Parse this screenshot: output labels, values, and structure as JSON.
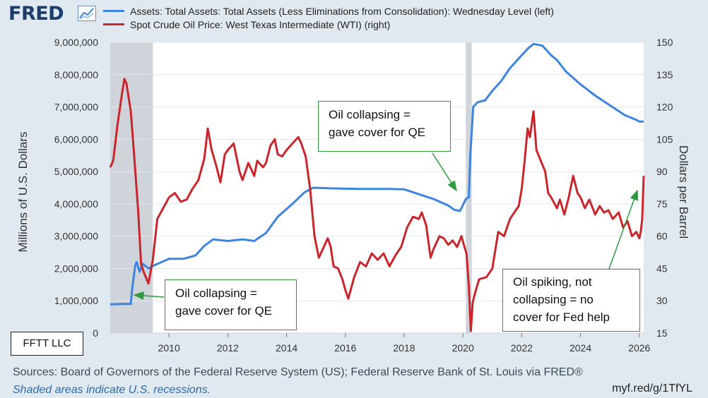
{
  "header": {
    "logo_text": "FRED",
    "logo_icon": "trend-chart-icon",
    "legend": [
      {
        "label": "Assets: Total Assets: Total Assets (Less Eliminations from Consolidation): Wednesday Level (left)",
        "color": "#3c84e0"
      },
      {
        "label": "Spot Crude Oil Price: West Texas Intermediate (WTI) (right)",
        "color": "#c8262b"
      }
    ]
  },
  "chart_data": {
    "type": "line",
    "left_axis": {
      "label": "Millions of U.S. Dollars",
      "range": [
        0,
        9000000
      ],
      "ticks": [
        "0",
        "1,000,000",
        "2,000,000",
        "3,000,000",
        "4,000,000",
        "5,000,000",
        "6,000,000",
        "7,000,000",
        "8,000,000",
        "9,000,000"
      ]
    },
    "right_axis": {
      "label": "Dollars per Barrel",
      "range": [
        15,
        150
      ],
      "ticks": [
        "15",
        "30",
        "45",
        "60",
        "75",
        "90",
        "105",
        "120",
        "135",
        "150"
      ]
    },
    "x_axis": {
      "range": [
        2008.0,
        2026.15
      ],
      "ticks": [
        "2010",
        "2012",
        "2014",
        "2016",
        "2018",
        "2020",
        "2022",
        "2024",
        "2026"
      ]
    },
    "recessions": [
      [
        2008.0,
        2009.45
      ],
      [
        2020.1,
        2020.3
      ]
    ],
    "series": [
      {
        "name": "Assets: Total Assets: Total Assets (Less Eliminations from Consolidation): Wednesday Level",
        "axis": "left",
        "color": "#3c84e0",
        "x": [
          2008.0,
          2008.4,
          2008.7,
          2008.75,
          2008.85,
          2008.9,
          2009.0,
          2009.1,
          2009.3,
          2009.5,
          2010.0,
          2010.5,
          2010.9,
          2011.2,
          2011.5,
          2012.0,
          2012.5,
          2012.9,
          2013.3,
          2013.7,
          2014.2,
          2014.6,
          2014.9,
          2015.5,
          2016.5,
          2017.5,
          2018.0,
          2018.5,
          2019.0,
          2019.5,
          2019.7,
          2019.9,
          2020.1,
          2020.2,
          2020.25,
          2020.35,
          2020.5,
          2020.75,
          2021.0,
          2021.3,
          2021.6,
          2021.9,
          2022.2,
          2022.4,
          2022.7,
          2023.0,
          2023.2,
          2023.5,
          2024.0,
          2024.5,
          2025.0,
          2025.5,
          2025.9,
          2026.0,
          2026.15
        ],
        "values": [
          890000,
          900000,
          900000,
          1400000,
          2100000,
          2200000,
          1900000,
          2150000,
          2000000,
          2100000,
          2300000,
          2300000,
          2400000,
          2700000,
          2900000,
          2850000,
          2900000,
          2850000,
          3100000,
          3600000,
          4000000,
          4350000,
          4500000,
          4480000,
          4460000,
          4460000,
          4450000,
          4300000,
          4150000,
          3950000,
          3820000,
          3780000,
          4150000,
          4200000,
          5500000,
          7000000,
          7150000,
          7200000,
          7500000,
          7800000,
          8200000,
          8500000,
          8800000,
          8950000,
          8900000,
          8600000,
          8450000,
          8100000,
          7700000,
          7350000,
          7050000,
          6750000,
          6600000,
          6550000,
          6550000
        ]
      },
      {
        "name": "Spot Crude Oil Price: West Texas Intermediate (WTI)",
        "axis": "right",
        "color": "#c8262b",
        "x": [
          2008.0,
          2008.1,
          2008.25,
          2008.4,
          2008.48,
          2008.55,
          2008.7,
          2008.8,
          2008.95,
          2009.05,
          2009.15,
          2009.3,
          2009.45,
          2009.6,
          2009.8,
          2010.0,
          2010.2,
          2010.4,
          2010.6,
          2010.8,
          2011.0,
          2011.2,
          2011.32,
          2011.45,
          2011.6,
          2011.75,
          2011.9,
          2012.0,
          2012.2,
          2012.4,
          2012.5,
          2012.7,
          2012.9,
          2013.0,
          2013.2,
          2013.3,
          2013.45,
          2013.6,
          2013.7,
          2013.85,
          2014.0,
          2014.2,
          2014.4,
          2014.5,
          2014.65,
          2014.8,
          2014.95,
          2015.1,
          2015.2,
          2015.4,
          2015.5,
          2015.6,
          2015.75,
          2015.9,
          2016.0,
          2016.1,
          2016.3,
          2016.5,
          2016.7,
          2016.9,
          2017.1,
          2017.3,
          2017.5,
          2017.7,
          2017.9,
          2018.1,
          2018.3,
          2018.5,
          2018.6,
          2018.75,
          2018.9,
          2019.0,
          2019.2,
          2019.35,
          2019.5,
          2019.65,
          2019.8,
          2019.95,
          2020.05,
          2020.12,
          2020.2,
          2020.27,
          2020.33,
          2020.4,
          2020.55,
          2020.8,
          2021.0,
          2021.2,
          2021.4,
          2021.6,
          2021.8,
          2021.9,
          2022.0,
          2022.1,
          2022.2,
          2022.28,
          2022.4,
          2022.5,
          2022.65,
          2022.8,
          2022.9,
          2023.0,
          2023.2,
          2023.3,
          2023.45,
          2023.6,
          2023.75,
          2023.9,
          2024.0,
          2024.15,
          2024.3,
          2024.5,
          2024.65,
          2024.8,
          2024.95,
          2025.1,
          2025.3,
          2025.45,
          2025.6,
          2025.75,
          2025.9,
          2026.0,
          2026.05,
          2026.1,
          2026.15
        ],
        "values": [
          92,
          95,
          112,
          126,
          133,
          131,
          118,
          100,
          72,
          47,
          43,
          38,
          49,
          68,
          73,
          78,
          80,
          76,
          77,
          82,
          86,
          96,
          110,
          100,
          93,
          85,
          98,
          100,
          103,
          90,
          86,
          94,
          88,
          95,
          92,
          94,
          102,
          105,
          98,
          97,
          100,
          103,
          106,
          103,
          97,
          82,
          60,
          50,
          53,
          59,
          55,
          46,
          45,
          40,
          35,
          31,
          41,
          48,
          46,
          52,
          49,
          52,
          46,
          51,
          55,
          64,
          69,
          68,
          71,
          65,
          50,
          54,
          60,
          59,
          56,
          58,
          55,
          60,
          55,
          52,
          37,
          16,
          29,
          33,
          40,
          41,
          45,
          62,
          60,
          68,
          72,
          74,
          82,
          95,
          110,
          106,
          118,
          100,
          95,
          90,
          80,
          78,
          73,
          77,
          70,
          78,
          88,
          80,
          78,
          73,
          77,
          70,
          74,
          71,
          72,
          68,
          71,
          64,
          67,
          60,
          62,
          59,
          62,
          68,
          88
        ]
      }
    ]
  },
  "annotations": [
    {
      "id": "oil-collapse-2020",
      "lines": [
        "Oil collapsing =",
        "gave cover for QE"
      ]
    },
    {
      "id": "oil-collapse-2009",
      "lines": [
        "Oil collapsing =",
        "gave cover for QE"
      ]
    },
    {
      "id": "oil-spiking-2026",
      "lines": [
        "Oil spiking, not",
        "collapsing = no",
        "cover for Fed help"
      ]
    }
  ],
  "watermark": "FFTT LLC",
  "footer": {
    "sources": "Sources: Board of Governors of the Federal Reserve System (US); Federal Reserve Bank of St. Louis via FRED®",
    "note": "Shaded areas indicate U.S. recessions.",
    "link": "myf.red/g/1TfYL"
  }
}
